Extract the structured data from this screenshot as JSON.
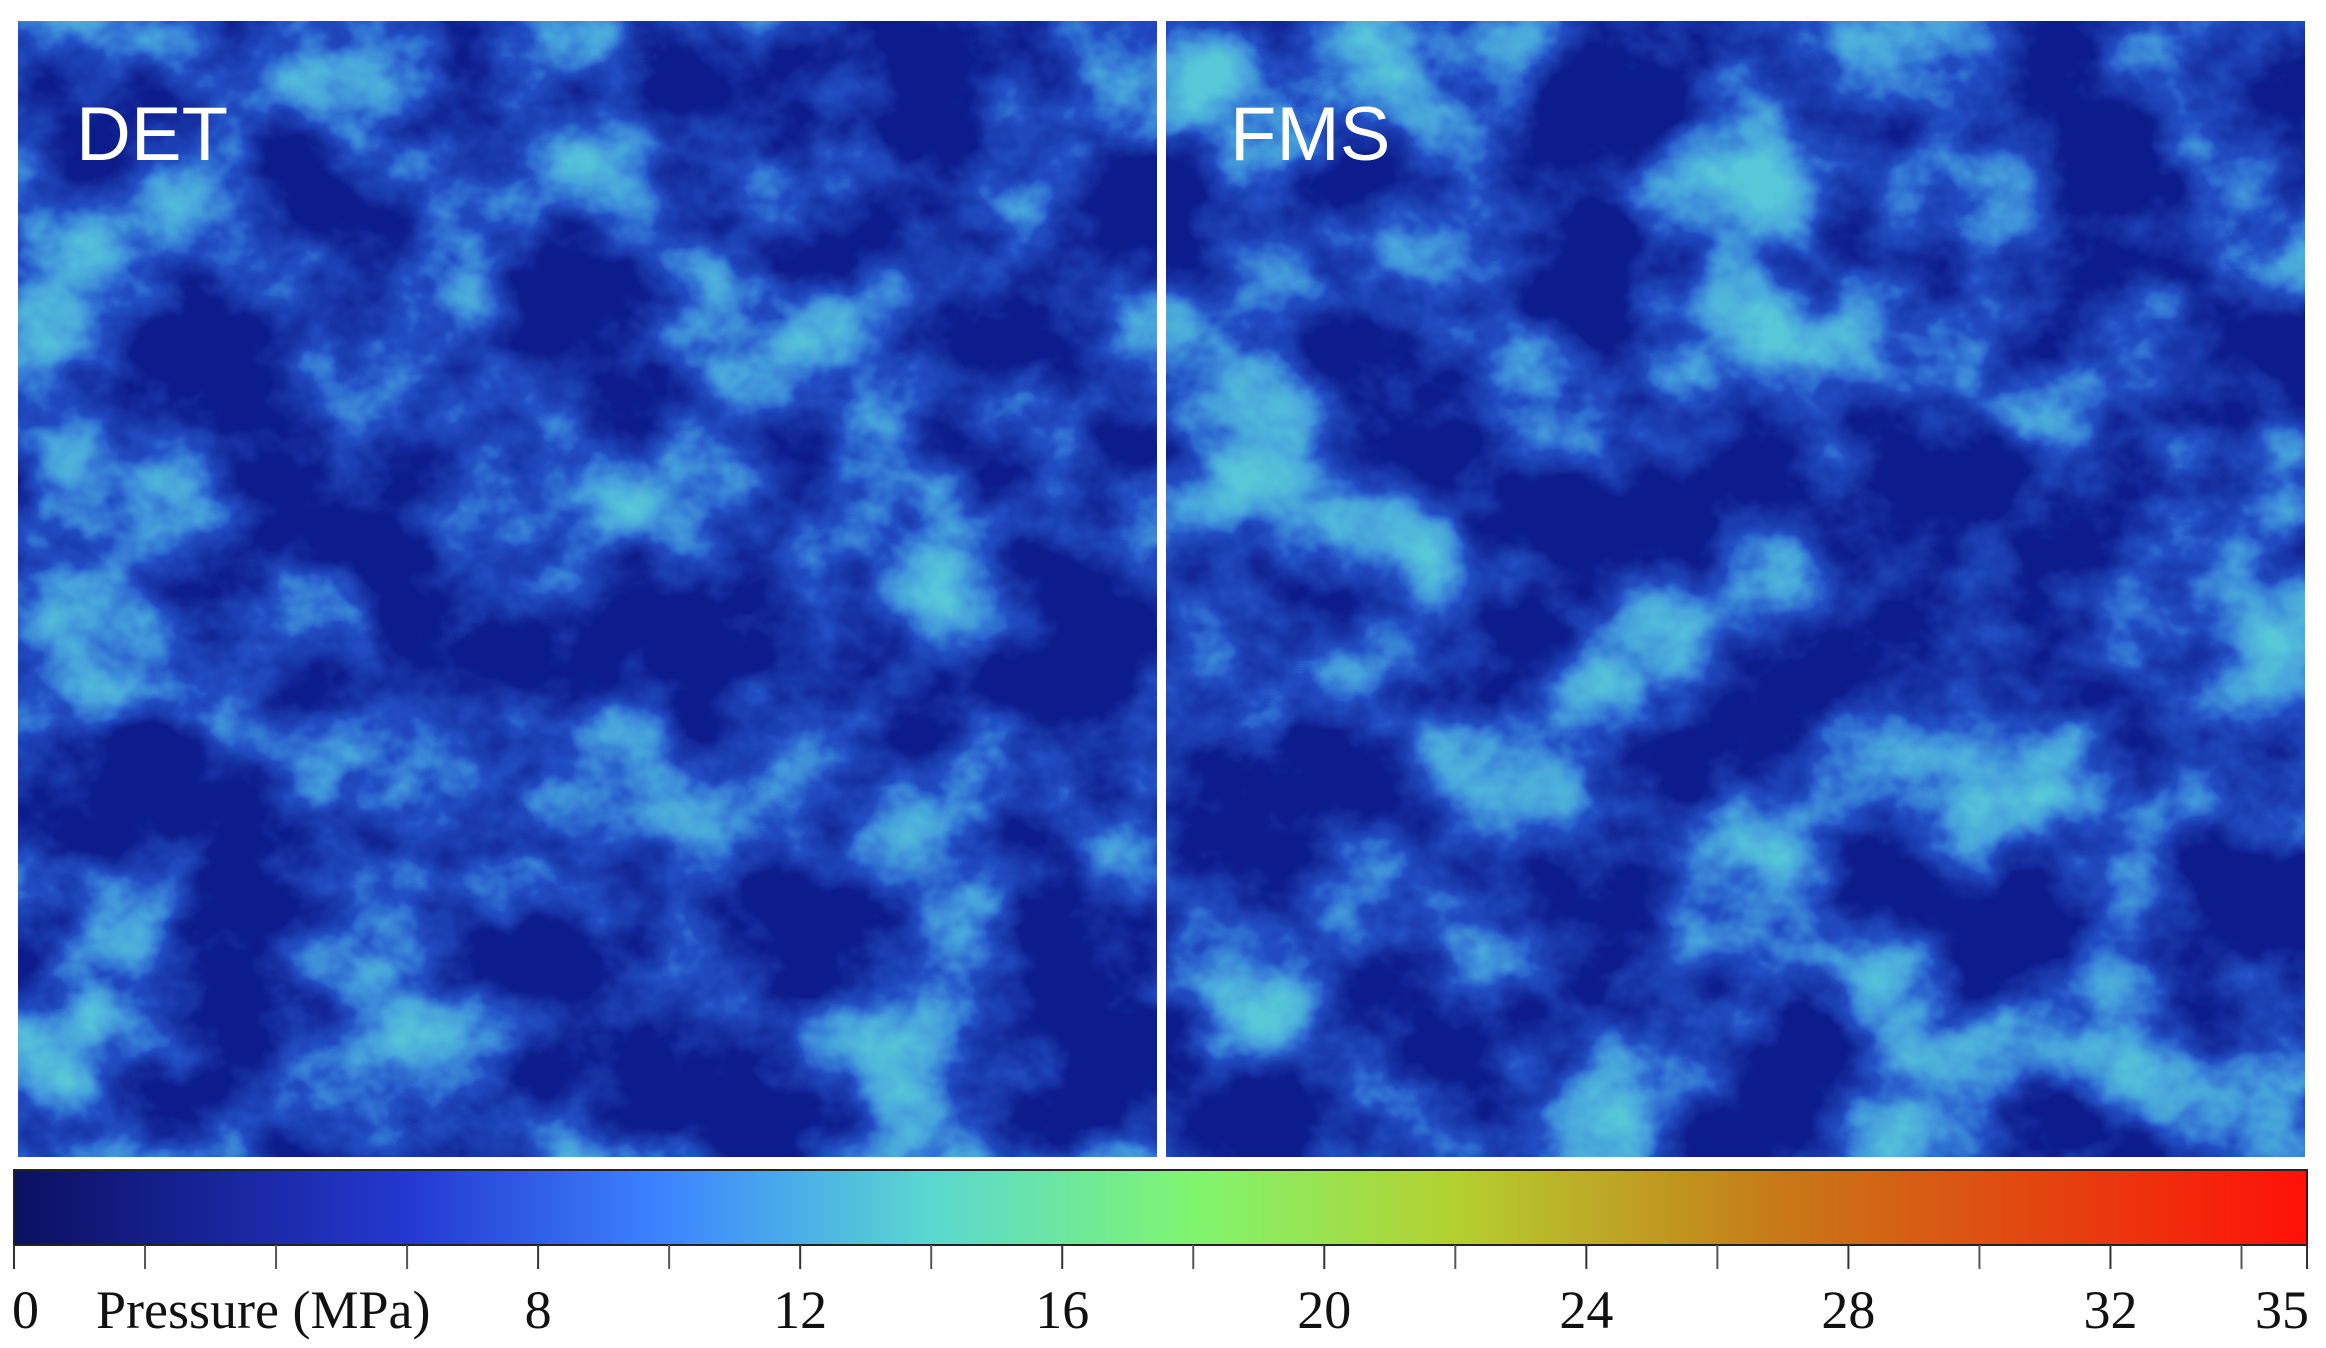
{
  "chart_data": {
    "type": "heatmap-panels",
    "panels": [
      {
        "label": "DET"
      },
      {
        "label": "FMS"
      }
    ],
    "colorbar": {
      "title": "Pressure (MPa)",
      "xlim": [
        0,
        35
      ],
      "xticks": [
        0,
        8,
        12,
        16,
        20,
        24,
        28,
        32,
        35
      ],
      "minor_ticks": [
        2,
        4,
        6,
        10,
        14,
        18,
        22,
        26,
        30,
        34
      ],
      "colormap": [
        {
          "value": 0,
          "color": "#0b1060"
        },
        {
          "value": 6,
          "color": "#2438d0"
        },
        {
          "value": 10,
          "color": "#3d86ff"
        },
        {
          "value": 14,
          "color": "#5ad8d0"
        },
        {
          "value": 18,
          "color": "#80f570"
        },
        {
          "value": 22,
          "color": "#b4d030"
        },
        {
          "value": 27,
          "color": "#c87818"
        },
        {
          "value": 35,
          "color": "#ff1008"
        }
      ]
    }
  }
}
